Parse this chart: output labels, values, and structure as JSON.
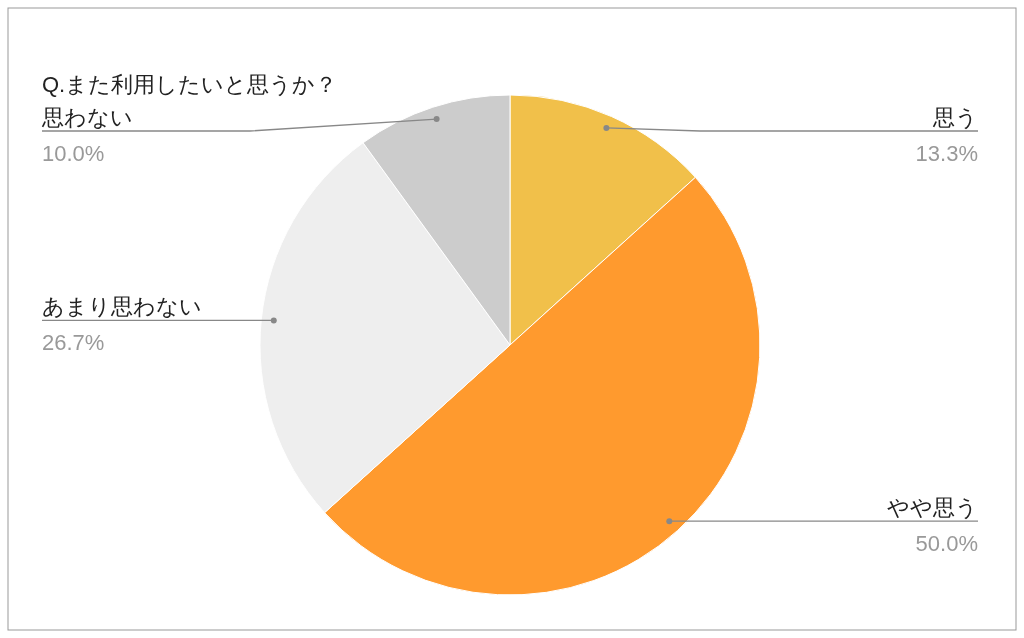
{
  "chart_data": {
    "type": "pie",
    "title": "Q.また利用したいと思うか？",
    "categories": [
      "思う",
      "やや思う",
      "あまり思わない",
      "思わない"
    ],
    "values": [
      13.3,
      50.0,
      26.7,
      10.0
    ],
    "colors": [
      "#f1c04a",
      "#ff9a2e",
      "#eeeeee",
      "#cccccc"
    ],
    "value_labels": [
      "13.3%",
      "50.0%",
      "26.7%",
      "10.0%"
    ]
  }
}
